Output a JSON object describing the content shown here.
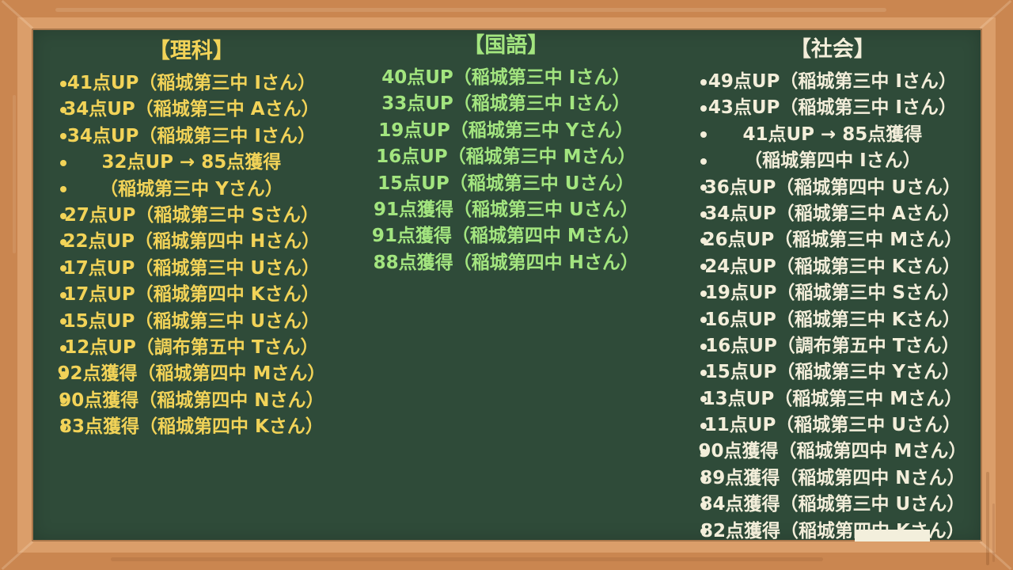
{
  "colors": {
    "wood_frame": "#ca8650",
    "wood_bevel": "#db9e6a",
    "board_green": "#2f4b39",
    "science_yellow": "#f2d358",
    "kokugo_green": "#a3e57f",
    "shakai_cream": "#f3eeda",
    "mask_box": "#f3efdc"
  },
  "columns": [
    {
      "id": "science",
      "title": "【理科】",
      "color": "#f2d358",
      "show_bullets": true,
      "items": [
        "41点UP（稲城第三中 Iさん）",
        "34点UP（稲城第三中 Aさん）",
        "34点UP（稲城第三中 Iさん）",
        "32点UP → 85点獲得",
        "（稲城第三中 Yさん）",
        "27点UP（稲城第三中 Sさん）",
        "22点UP（稲城第四中 Hさん）",
        "17点UP（稲城第三中 Uさん）",
        "17点UP（稲城第四中 Kさん）",
        "15点UP（稲城第三中 Uさん）",
        "12点UP（調布第五中 Tさん）",
        "92点獲得（稲城第四中 Mさん）",
        "90点獲得（稲城第四中 Nさん）",
        "83点獲得（稲城第四中 Kさん）"
      ]
    },
    {
      "id": "kokugo",
      "title": "【国語】",
      "color": "#a3e57f",
      "show_bullets": false,
      "items": [
        "40点UP（稲城第三中 Iさん）",
        "33点UP（稲城第三中 Iさん）",
        "19点UP（稲城第三中 Yさん）",
        "16点UP（稲城第三中 Mさん）",
        "15点UP（稲城第三中 Uさん）",
        "91点獲得（稲城第三中 Uさん）",
        "91点獲得（稲城第四中 Mさん）",
        "88点獲得（稲城第四中 Hさん）"
      ]
    },
    {
      "id": "shakai",
      "title": "【社会】",
      "color": "#f3eeda",
      "show_bullets": true,
      "items": [
        "49点UP（稲城第三中 Iさん）",
        "43点UP（稲城第三中 Iさん）",
        "41点UP → 85点獲得",
        "（稲城第四中 Iさん）",
        "36点UP（稲城第四中 Uさん）",
        "34点UP（稲城第三中 Aさん）",
        "26点UP（稲城第三中 Mさん）",
        "24点UP（稲城第三中 Kさん）",
        "19点UP（稲城第三中 Sさん）",
        "16点UP（稲城第三中 Kさん）",
        "16点UP（調布第五中 Tさん）",
        "15点UP（稲城第三中 Yさん）",
        "13点UP（稲城第三中 Mさん）",
        "11点UP（稲城第三中 Uさん）",
        "90点獲得（稲城第四中 Mさん）",
        "89点獲得（稲城第四中 Nさん）",
        "84点獲得（稲城第三中 Uさん）",
        "82点獲得（稲城第四中 Kさん）"
      ]
    }
  ]
}
